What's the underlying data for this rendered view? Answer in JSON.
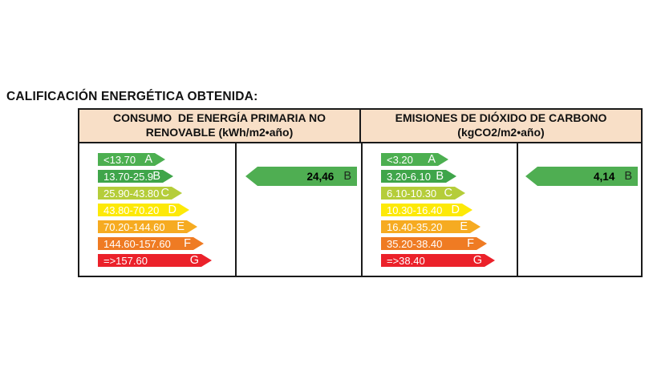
{
  "page_title": "CALIFICACIÓN ENERGÉTICA OBTENIDA:",
  "table": {
    "headers": [
      {
        "line1": "CONSUMO  DE ENERGÍA PRIMARIA NO",
        "line2": "RENOVABLE (kWh/m2•año)"
      },
      {
        "line1": "EMISIONES DE DIÓXIDO DE CARBONO",
        "line2": "(kgCO2/m2•año)"
      }
    ]
  },
  "chart_data": [
    {
      "type": "bar",
      "title": "CONSUMO DE ENERGÍA PRIMARIA NO RENOVABLE",
      "unit": "kWh/m2•año",
      "categories": [
        "A",
        "B",
        "C",
        "D",
        "E",
        "F",
        "G"
      ],
      "ranges": [
        "<13.70",
        "13.70-25.9",
        "25.90-43.80",
        "43.80-70.20",
        "70.20-144.60",
        "144.60-157.60",
        "=>157.60"
      ],
      "colors": [
        "#4caf50",
        "#3fa54a",
        "#b5cd3a",
        "#fde908",
        "#f6ab21",
        "#ef7b23",
        "#eb212a"
      ],
      "obtained": {
        "display": "24,46",
        "value": 24.46,
        "grade": "B",
        "color": "#4fae52"
      }
    },
    {
      "type": "bar",
      "title": "EMISIONES DE DIÓXIDO DE CARBONO",
      "unit": "kgCO2/m2•año",
      "categories": [
        "A",
        "B",
        "C",
        "D",
        "E",
        "F",
        "G"
      ],
      "ranges": [
        "<3.20",
        "3.20-6.10",
        "6.10-10.30",
        "10.30-16.40",
        "16.40-35.20",
        "35.20-38.40",
        "=>38.40"
      ],
      "colors": [
        "#4caf50",
        "#3fa54a",
        "#b5cd3a",
        "#fde908",
        "#f6ab21",
        "#ef7b23",
        "#eb212a"
      ],
      "obtained": {
        "display": "4,14",
        "value": 4.14,
        "grade": "B",
        "color": "#4fae52"
      }
    }
  ],
  "style": {
    "header_bg": "#f8dfc7",
    "border_color": "#1a1a1a",
    "scale_text_color": "#ffffff"
  }
}
